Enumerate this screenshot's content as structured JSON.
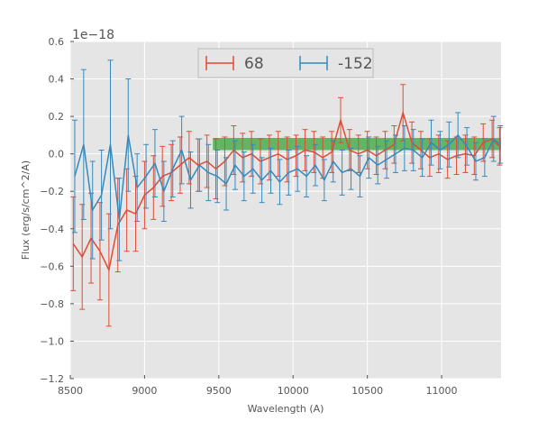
{
  "chart_data": {
    "type": "line",
    "title": "",
    "xlabel": "Wavelength (A)",
    "ylabel": "Flux (erg/s/cm^2/A)",
    "y_offset_label": "1e−18",
    "xlim": [
      8500,
      11400
    ],
    "ylim": [
      -1.2,
      0.6
    ],
    "xticks": [
      8500,
      9000,
      9500,
      10000,
      10500,
      11000
    ],
    "yticks": [
      0.6,
      0.4,
      0.2,
      0.0,
      -0.2,
      -0.4,
      -0.6,
      -0.8,
      -1.0,
      -1.2
    ],
    "ytick_labels": [
      "0.6",
      "0.4",
      "0.2",
      "0.0",
      "−0.2",
      "−0.4",
      "−0.6",
      "−0.8",
      "−1.0",
      "−1.2"
    ],
    "grid": true,
    "legend_position": "top-center",
    "band": {
      "x_start": 9460,
      "x_end": 11400,
      "y_low": 0.02,
      "y_high": 0.085,
      "color": "#2ca02c"
    },
    "series": [
      {
        "name": "68",
        "color": "#e24a33",
        "x": [
          8520,
          8580,
          8640,
          8700,
          8760,
          8820,
          8880,
          8940,
          9000,
          9060,
          9120,
          9180,
          9240,
          9300,
          9360,
          9420,
          9480,
          9540,
          9600,
          9660,
          9720,
          9780,
          9840,
          9900,
          9960,
          10020,
          10080,
          10140,
          10200,
          10260,
          10320,
          10380,
          10440,
          10500,
          10560,
          10620,
          10680,
          10740,
          10800,
          10860,
          10920,
          10980,
          11040,
          11100,
          11160,
          11220,
          11280,
          11340,
          11390
        ],
        "y": [
          -0.48,
          -0.55,
          -0.45,
          -0.52,
          -0.62,
          -0.38,
          -0.3,
          -0.32,
          -0.22,
          -0.18,
          -0.12,
          -0.1,
          -0.06,
          -0.02,
          -0.06,
          -0.04,
          -0.08,
          -0.04,
          0.02,
          -0.02,
          0.0,
          -0.04,
          -0.02,
          0.0,
          -0.03,
          -0.01,
          0.02,
          0.01,
          -0.02,
          0.01,
          0.18,
          0.02,
          0.0,
          0.02,
          -0.01,
          0.02,
          0.05,
          0.22,
          0.06,
          0.02,
          -0.02,
          0.0,
          -0.03,
          -0.01,
          0.0,
          -0.01,
          0.06,
          0.08,
          0.04
        ],
        "err": [
          0.25,
          0.28,
          0.24,
          0.26,
          0.3,
          0.25,
          0.22,
          0.2,
          0.18,
          0.17,
          0.16,
          0.15,
          0.15,
          0.14,
          0.14,
          0.14,
          0.16,
          0.13,
          0.13,
          0.13,
          0.12,
          0.12,
          0.12,
          0.12,
          0.12,
          0.11,
          0.11,
          0.11,
          0.11,
          0.11,
          0.12,
          0.11,
          0.1,
          0.1,
          0.1,
          0.1,
          0.1,
          0.15,
          0.11,
          0.1,
          0.1,
          0.1,
          0.1,
          0.1,
          0.1,
          0.1,
          0.1,
          0.1,
          0.1
        ]
      },
      {
        "name": "-152",
        "color": "#348abd",
        "x": [
          8530,
          8590,
          8650,
          8710,
          8770,
          8830,
          8890,
          8950,
          9010,
          9070,
          9130,
          9190,
          9250,
          9310,
          9370,
          9430,
          9490,
          9550,
          9610,
          9670,
          9730,
          9790,
          9850,
          9910,
          9970,
          10030,
          10090,
          10150,
          10210,
          10270,
          10330,
          10390,
          10450,
          10510,
          10570,
          10630,
          10690,
          10750,
          10810,
          10870,
          10930,
          10990,
          11050,
          11110,
          11170,
          11230,
          11290,
          11350,
          11395
        ],
        "y": [
          -0.12,
          0.05,
          -0.3,
          -0.22,
          0.05,
          -0.35,
          0.1,
          -0.18,
          -0.12,
          -0.05,
          -0.2,
          -0.08,
          0.02,
          -0.14,
          -0.06,
          -0.1,
          -0.12,
          -0.16,
          -0.06,
          -0.12,
          -0.08,
          -0.14,
          -0.09,
          -0.15,
          -0.1,
          -0.08,
          -0.12,
          -0.06,
          -0.14,
          -0.04,
          -0.1,
          -0.08,
          -0.12,
          -0.02,
          -0.06,
          -0.03,
          0.0,
          0.03,
          0.02,
          -0.02,
          0.06,
          0.02,
          0.05,
          0.1,
          0.04,
          -0.04,
          -0.02,
          0.08,
          0.05
        ],
        "err": [
          0.3,
          0.4,
          0.26,
          0.24,
          0.45,
          0.22,
          0.3,
          0.18,
          0.17,
          0.18,
          0.16,
          0.15,
          0.18,
          0.15,
          0.14,
          0.15,
          0.14,
          0.14,
          0.13,
          0.13,
          0.13,
          0.12,
          0.12,
          0.12,
          0.12,
          0.12,
          0.11,
          0.11,
          0.11,
          0.11,
          0.12,
          0.11,
          0.11,
          0.11,
          0.1,
          0.1,
          0.1,
          0.12,
          0.11,
          0.1,
          0.12,
          0.1,
          0.12,
          0.12,
          0.1,
          0.1,
          0.1,
          0.12,
          0.1
        ]
      }
    ]
  }
}
